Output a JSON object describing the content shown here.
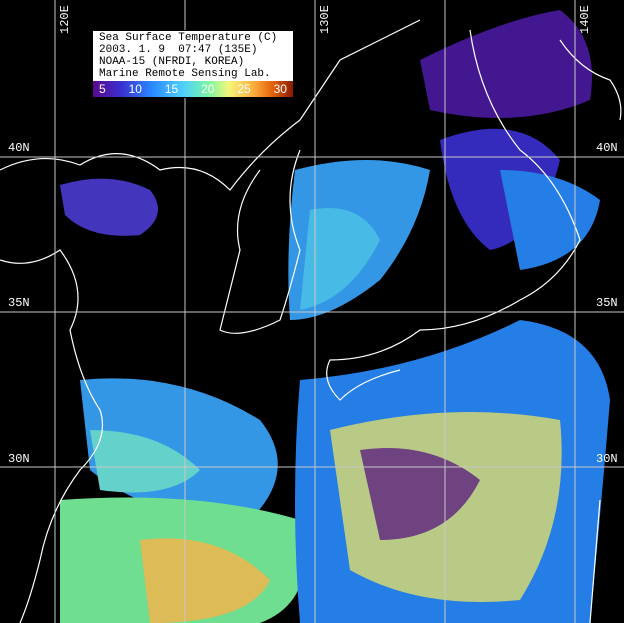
{
  "legend": {
    "title": "Sea Surface Temperature (C)",
    "datetime": "2003. 1. 9  07:47 (135E)",
    "satellite": "NOAA-15 (NFRDI, KOREA)",
    "lab": "Marine Remote Sensing Lab.",
    "scale_ticks": [
      "5",
      "10",
      "15",
      "20",
      "25",
      "30"
    ],
    "colors": [
      "#5a0a8c",
      "#3a2fd0",
      "#2a8cff",
      "#4fd0ff",
      "#7cf7a0",
      "#f5f57a",
      "#ffb040",
      "#e0600a",
      "#8a1a00"
    ]
  },
  "grid": {
    "longitude_labels": [
      "120E",
      "130E",
      "140E"
    ],
    "latitude_labels_left": [
      "40N",
      "35N",
      "30N"
    ],
    "latitude_labels_right": [
      "40N",
      "35N",
      "30N"
    ]
  }
}
